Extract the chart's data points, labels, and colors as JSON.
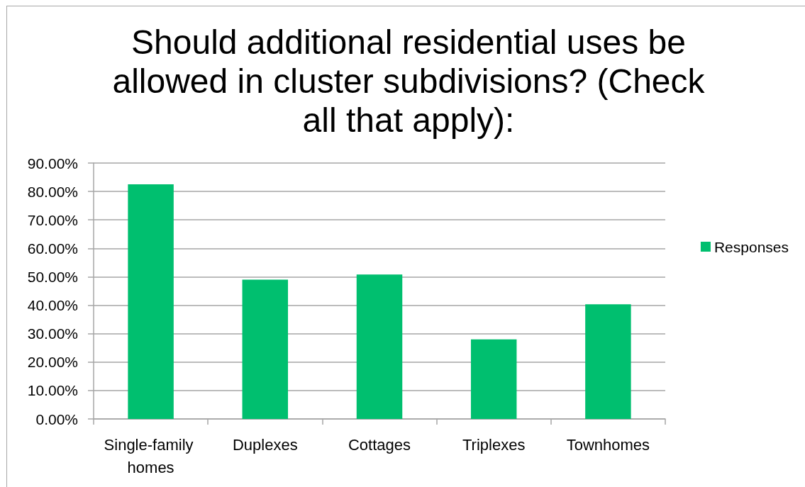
{
  "chart_data": {
    "type": "bar",
    "title": "Should additional residential uses be allowed in cluster subdivisions? (Check all that apply):",
    "categories": [
      "Single-family homes",
      "Duplexes",
      "Cottages",
      "Triplexes",
      "Townhomes"
    ],
    "series": [
      {
        "name": "Responses",
        "color": "#00bf6f",
        "values": [
          82.5,
          49.0,
          50.8,
          28.0,
          40.3
        ]
      }
    ],
    "ylim": [
      0,
      90
    ],
    "yticks": [
      {
        "value": 0,
        "label": "0.00%"
      },
      {
        "value": 10,
        "label": "10.00%"
      },
      {
        "value": 20,
        "label": "20.00%"
      },
      {
        "value": 30,
        "label": "30.00%"
      },
      {
        "value": 40,
        "label": "40.00%"
      },
      {
        "value": 50,
        "label": "50.00%"
      },
      {
        "value": 60,
        "label": "60.00%"
      },
      {
        "value": 70,
        "label": "70.00%"
      },
      {
        "value": 80,
        "label": "80.00%"
      },
      {
        "value": 90,
        "label": "90.00%"
      }
    ],
    "grid": "y",
    "legend": "right"
  }
}
